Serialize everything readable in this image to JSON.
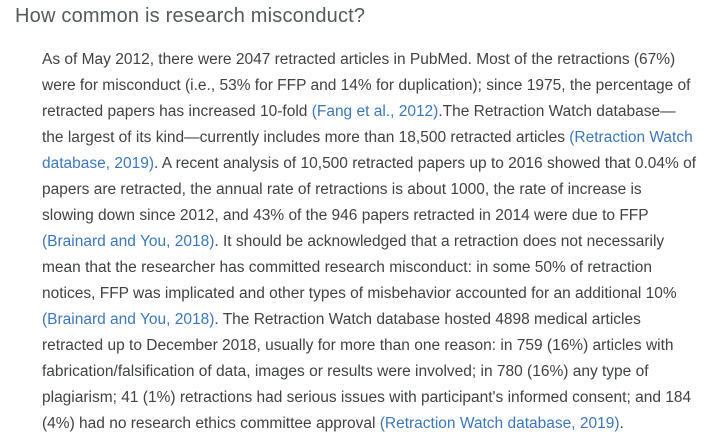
{
  "section": {
    "heading": "How common is research misconduct?",
    "paragraph": {
      "segments": [
        {
          "type": "text",
          "text": "As of May 2012, there were 2047 retracted articles in PubMed. Most of the retractions (67%) were for misconduct (i.e., 53% for FFP and 14% for duplication); since 1975, the percentage of retracted papers has increased 10-fold "
        },
        {
          "type": "link",
          "text": "(Fang et al., 2012)"
        },
        {
          "type": "text",
          "text": ".The Retraction Watch database—the largest of its kind—currently includes more than 18,500 retracted articles "
        },
        {
          "type": "link",
          "text": "(Retraction Watch database, 2019)"
        },
        {
          "type": "text",
          "text": ". A recent analysis of 10,500 retracted papers up to 2016 showed that 0.04% of papers are retracted, the annual rate of retractions is about 1000, the rate of increase is slowing down since 2012, and 43% of the 946 papers retracted in 2014 were due to FFP "
        },
        {
          "type": "link",
          "text": "(Brainard and You, 2018)"
        },
        {
          "type": "text",
          "text": ". It should be acknowledged that a retraction does not necessarily mean that the researcher has committed research misconduct: in some 50% of retraction notices, FFP was implicated and other types of misbehavior accounted for an additional 10% "
        },
        {
          "type": "link",
          "text": "(Brainard and You, 2018)"
        },
        {
          "type": "text",
          "text": ". The Retraction Watch database hosted 4898 medical articles retracted up to December 2018, usually for more than one reason: in 759 (16%) articles with fabrication/falsification of data, images or results were involved; in 780 (16%) any type of plagiarism; 41 (1%) retractions had serious issues with participant's informed consent; and 184 (4%) had no research ethics committee approval "
        },
        {
          "type": "link",
          "text": "(Retraction Watch database, 2019)"
        },
        {
          "type": "text",
          "text": "."
        }
      ]
    },
    "colors": {
      "background": "#ffffff",
      "heading_text": "#555a5e",
      "body_text": "#404244",
      "link": "#3c77bd"
    }
  }
}
